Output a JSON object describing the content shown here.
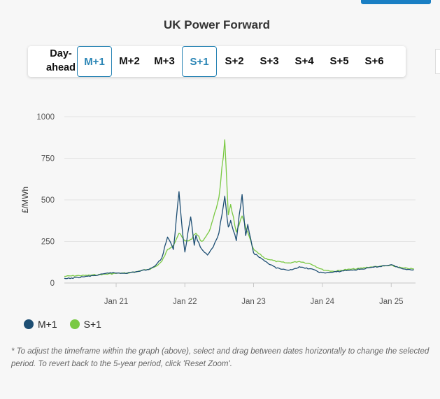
{
  "title": "UK Power Forward",
  "tabs": [
    {
      "label": "Day-ahead",
      "active": false
    },
    {
      "label": "M+1",
      "active": true
    },
    {
      "label": "M+2",
      "active": false
    },
    {
      "label": "M+3",
      "active": false
    },
    {
      "label": "S+1",
      "active": true
    },
    {
      "label": "S+2",
      "active": false
    },
    {
      "label": "S+3",
      "active": false
    },
    {
      "label": "S+4",
      "active": false
    },
    {
      "label": "S+5",
      "active": false
    },
    {
      "label": "S+6",
      "active": false
    }
  ],
  "footnote": "* To adjust the timeframe within the graph (above), select and drag between dates horizontally to change the selected period. To revert back to the 5-year period, click 'Reset Zoom'.",
  "colors": {
    "m1": "#1d4e73",
    "s1": "#7ac943",
    "accent": "#2a85b5"
  },
  "chart_data": {
    "type": "line",
    "title": "UK Power Forward",
    "xlabel": "",
    "ylabel": "£/MWh",
    "ylim": [
      0,
      1000
    ],
    "yticks": [
      "0",
      "250",
      "500",
      "750",
      "1000"
    ],
    "xticks": [
      "Jan 21",
      "Jan 22",
      "Jan 23",
      "Jan 24",
      "Jan 25"
    ],
    "grid": true,
    "legend": "bottom-left",
    "series": [
      {
        "name": "M+1",
        "color": "#1d4e73",
        "points": [
          [
            "2020-04",
            25
          ],
          [
            "2020-06",
            32
          ],
          [
            "2020-08",
            40
          ],
          [
            "2020-10",
            48
          ],
          [
            "2020-12",
            62
          ],
          [
            "2021-01",
            60
          ],
          [
            "2021-03",
            60
          ],
          [
            "2021-05",
            70
          ],
          [
            "2021-07",
            85
          ],
          [
            "2021-08",
            110
          ],
          [
            "2021-09",
            150
          ],
          [
            "2021-10",
            280
          ],
          [
            "2021-11",
            200
          ],
          [
            "2021-12",
            550
          ],
          [
            "2021-12-20",
            300
          ],
          [
            "2022-01",
            190
          ],
          [
            "2022-02",
            400
          ],
          [
            "2022-02-20",
            230
          ],
          [
            "2022-03",
            280
          ],
          [
            "2022-04",
            200
          ],
          [
            "2022-05",
            170
          ],
          [
            "2022-06",
            220
          ],
          [
            "2022-07",
            300
          ],
          [
            "2022-08",
            520
          ],
          [
            "2022-08-20",
            330
          ],
          [
            "2022-09",
            370
          ],
          [
            "2022-10",
            260
          ],
          [
            "2022-11",
            545
          ],
          [
            "2022-11-20",
            280
          ],
          [
            "2022-12",
            350
          ],
          [
            "2023-01",
            180
          ],
          [
            "2023-03",
            130
          ],
          [
            "2023-05",
            90
          ],
          [
            "2023-07",
            75
          ],
          [
            "2023-09",
            95
          ],
          [
            "2023-11",
            85
          ],
          [
            "2024-01",
            60
          ],
          [
            "2024-03",
            65
          ],
          [
            "2024-05",
            75
          ],
          [
            "2024-07",
            80
          ],
          [
            "2024-09",
            90
          ],
          [
            "2024-11",
            100
          ],
          [
            "2025-01",
            110
          ],
          [
            "2025-03",
            85
          ],
          [
            "2025-05",
            80
          ]
        ]
      },
      {
        "name": "S+1",
        "color": "#7ac943",
        "points": [
          [
            "2020-04",
            40
          ],
          [
            "2020-06",
            44
          ],
          [
            "2020-08",
            46
          ],
          [
            "2020-10",
            50
          ],
          [
            "2020-12",
            55
          ],
          [
            "2021-01",
            58
          ],
          [
            "2021-03",
            60
          ],
          [
            "2021-05",
            70
          ],
          [
            "2021-07",
            85
          ],
          [
            "2021-08",
            100
          ],
          [
            "2021-09",
            130
          ],
          [
            "2021-10",
            200
          ],
          [
            "2021-11",
            230
          ],
          [
            "2021-12",
            300
          ],
          [
            "2022-01",
            250
          ],
          [
            "2022-02",
            260
          ],
          [
            "2022-03",
            300
          ],
          [
            "2022-04",
            250
          ],
          [
            "2022-05",
            290
          ],
          [
            "2022-06",
            380
          ],
          [
            "2022-07",
            520
          ],
          [
            "2022-08",
            850
          ],
          [
            "2022-08-20",
            400
          ],
          [
            "2022-09",
            480
          ],
          [
            "2022-10",
            300
          ],
          [
            "2022-11",
            400
          ],
          [
            "2022-12",
            300
          ],
          [
            "2023-01",
            200
          ],
          [
            "2023-03",
            150
          ],
          [
            "2023-05",
            130
          ],
          [
            "2023-07",
            120
          ],
          [
            "2023-09",
            130
          ],
          [
            "2023-11",
            115
          ],
          [
            "2024-01",
            80
          ],
          [
            "2024-03",
            70
          ],
          [
            "2024-05",
            80
          ],
          [
            "2024-07",
            85
          ],
          [
            "2024-09",
            95
          ],
          [
            "2024-11",
            100
          ],
          [
            "2025-01",
            105
          ],
          [
            "2025-03",
            90
          ],
          [
            "2025-05",
            85
          ]
        ]
      }
    ]
  }
}
